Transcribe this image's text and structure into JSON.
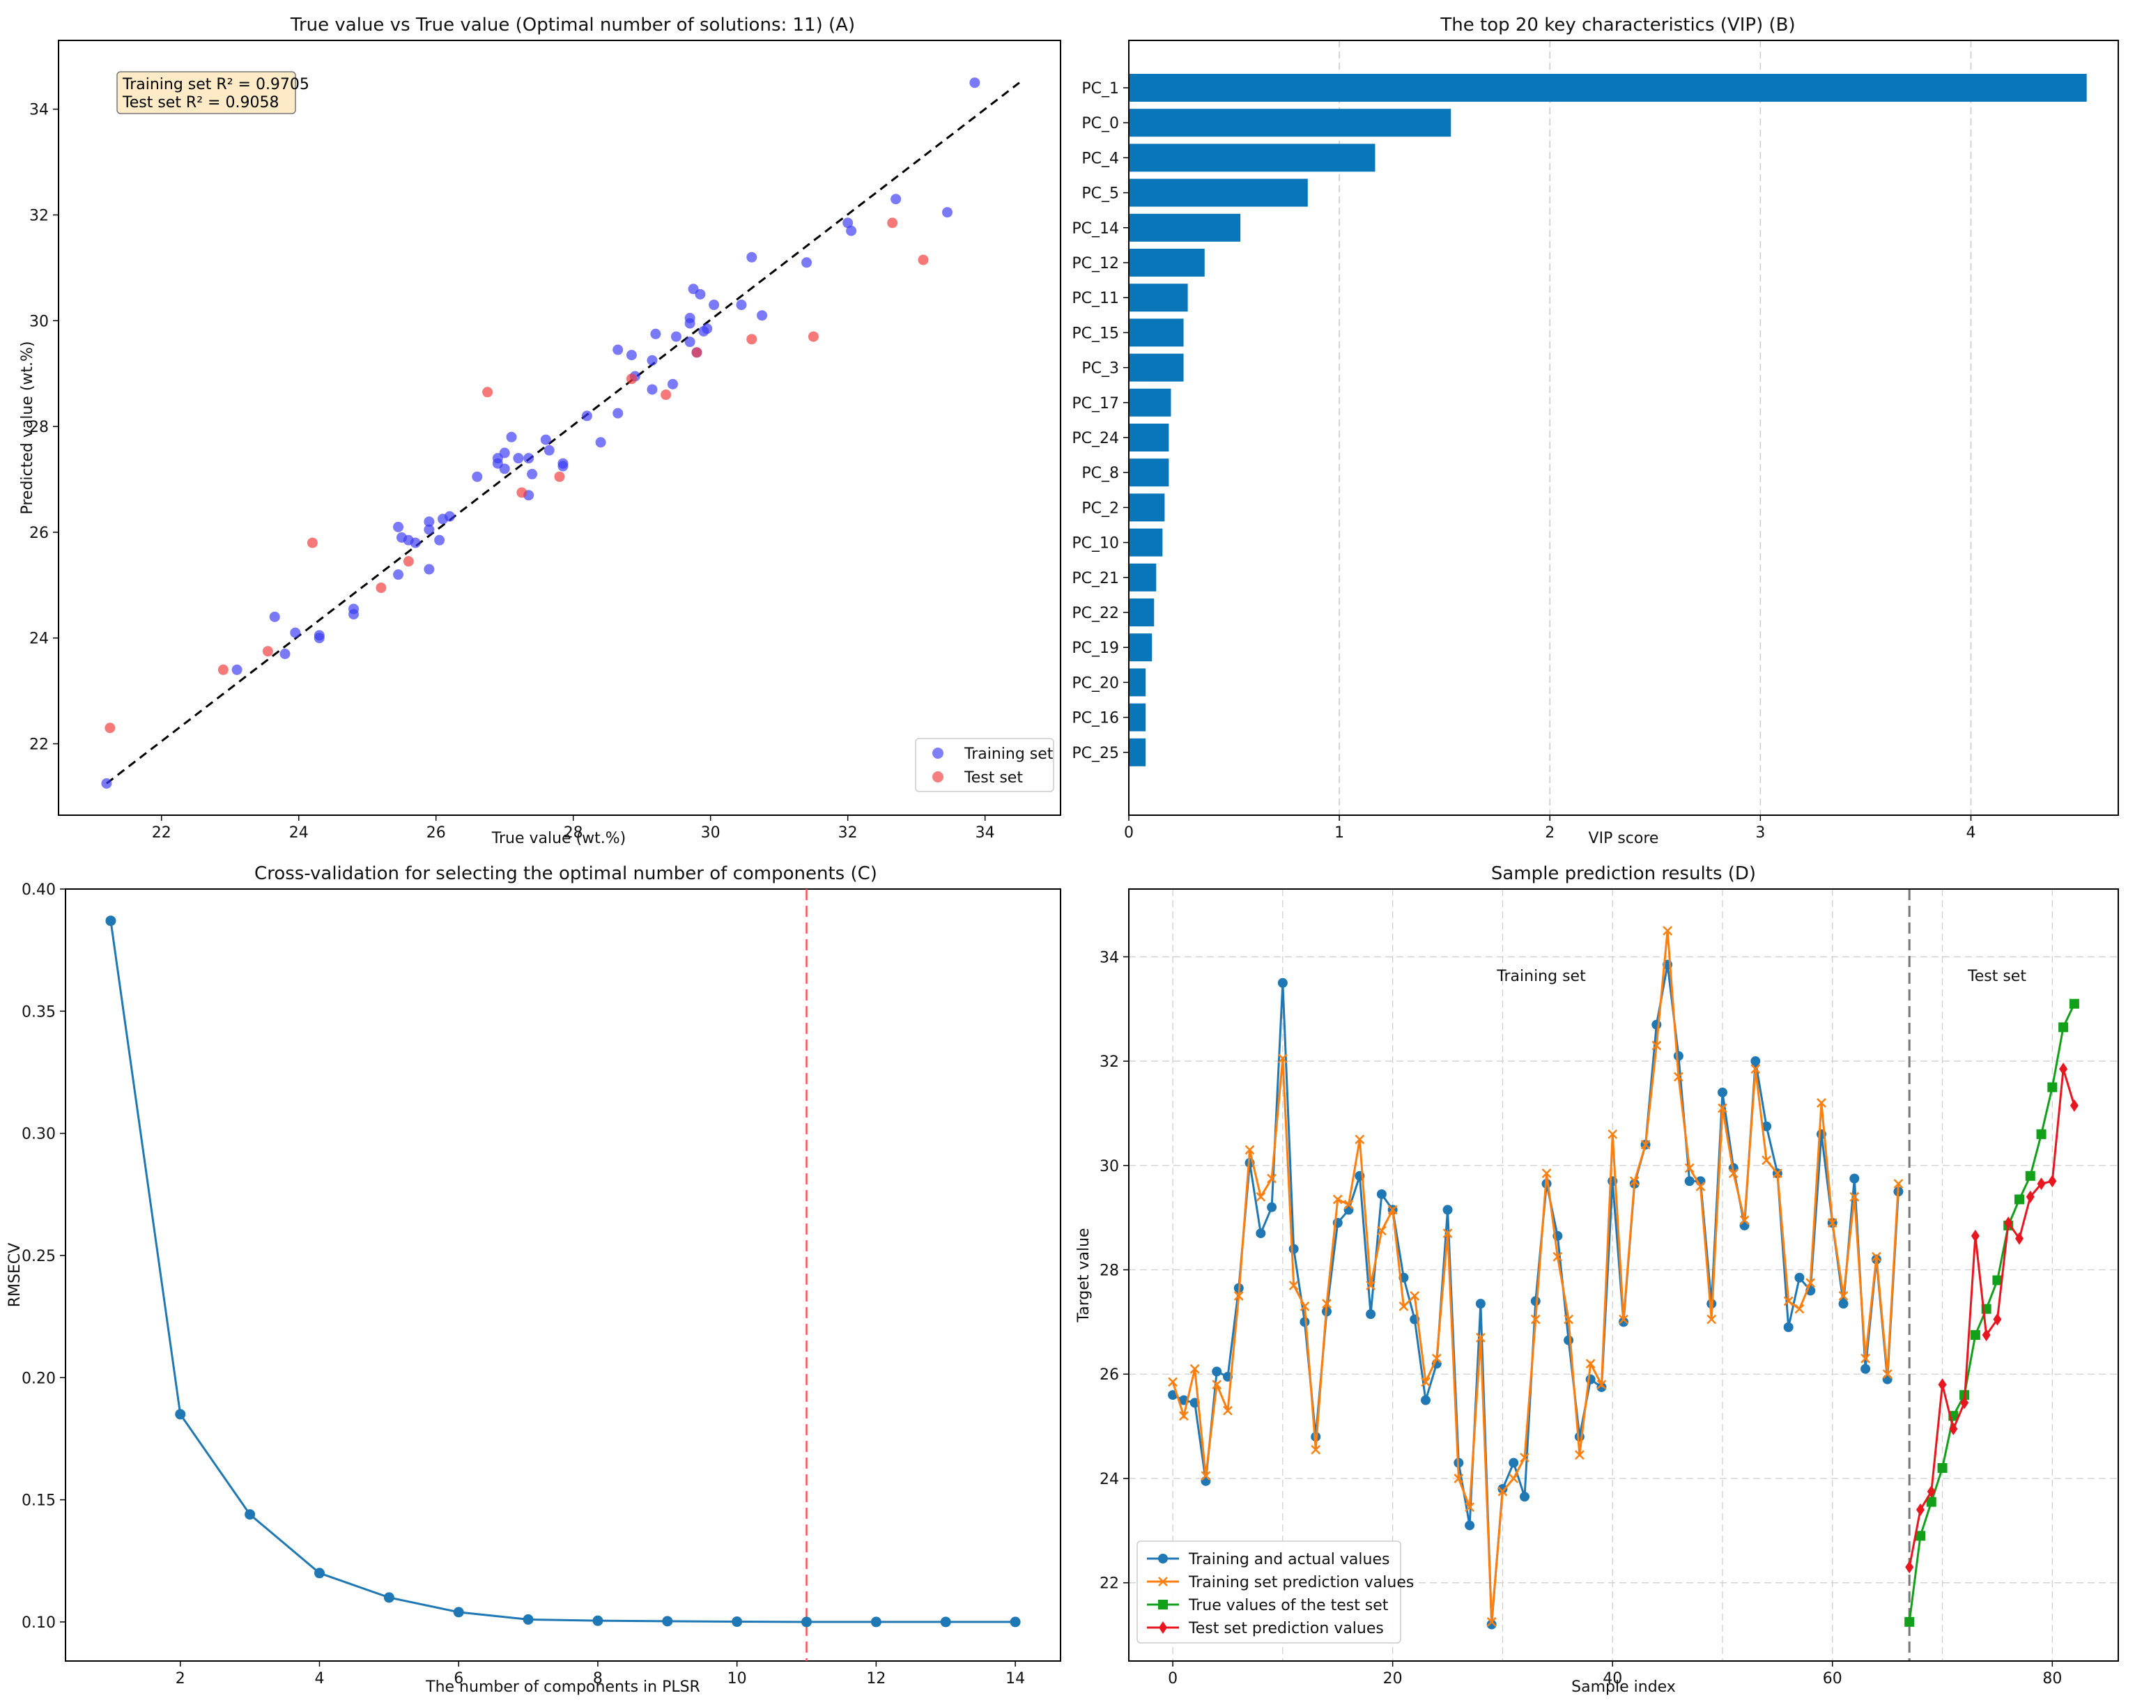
{
  "colors": {
    "train_scatter": "#3b3bf5",
    "test_scatter": "#f03a3a",
    "bar": "#0876b8",
    "blue_line": "#1f77b4",
    "orange_line": "#ff7f0e",
    "green_line": "#12a01a",
    "red_line": "#e8161f",
    "optimal_line": "#ff5555",
    "box_face": "#fdebc8"
  },
  "chart_data": [
    {
      "id": "A",
      "type": "scatter",
      "title": "True value vs True value (Optimal number of solutions: 11) (A)",
      "xlabel": "True value (wt.%)",
      "ylabel": "Predicted value (wt.%)",
      "xlim": [
        20.5,
        35.1
      ],
      "ylim": [
        20.65,
        35.3
      ],
      "xticks": [
        22,
        24,
        26,
        28,
        30,
        32,
        34
      ],
      "yticks": [
        22,
        24,
        26,
        28,
        30,
        32,
        34
      ],
      "grid": false,
      "legend_position": "bottom-right",
      "stats_box": [
        "Training set R² = 0.9705",
        "Test set R² = 0.9058"
      ],
      "reference_line": [
        [
          21.2,
          21.25
        ],
        [
          34.5,
          34.5
        ]
      ],
      "series": [
        {
          "name": "Training set",
          "points": [
            [
              21.2,
              21.25
            ],
            [
              23.1,
              23.4
            ],
            [
              23.65,
              24.4
            ],
            [
              23.8,
              23.7
            ],
            [
              23.95,
              24.1
            ],
            [
              24.3,
              24.05
            ],
            [
              24.3,
              24.0
            ],
            [
              24.8,
              24.45
            ],
            [
              24.8,
              24.55
            ],
            [
              25.45,
              26.1
            ],
            [
              25.5,
              25.9
            ],
            [
              25.45,
              25.2
            ],
            [
              25.6,
              25.85
            ],
            [
              25.7,
              25.8
            ],
            [
              25.9,
              25.3
            ],
            [
              25.9,
              26.05
            ],
            [
              25.9,
              26.2
            ],
            [
              26.05,
              25.85
            ],
            [
              26.1,
              26.25
            ],
            [
              26.2,
              26.3
            ],
            [
              26.6,
              27.05
            ],
            [
              26.9,
              27.4
            ],
            [
              26.9,
              27.3
            ],
            [
              27.0,
              27.2
            ],
            [
              27.0,
              27.5
            ],
            [
              27.1,
              27.8
            ],
            [
              27.2,
              27.4
            ],
            [
              27.35,
              27.4
            ],
            [
              27.35,
              26.7
            ],
            [
              27.4,
              27.1
            ],
            [
              27.6,
              27.75
            ],
            [
              27.65,
              27.55
            ],
            [
              27.85,
              27.3
            ],
            [
              27.85,
              27.25
            ],
            [
              28.2,
              28.2
            ],
            [
              28.4,
              27.7
            ],
            [
              28.65,
              28.25
            ],
            [
              28.65,
              29.45
            ],
            [
              28.85,
              29.35
            ],
            [
              28.9,
              28.95
            ],
            [
              29.15,
              29.25
            ],
            [
              29.15,
              28.7
            ],
            [
              29.2,
              29.75
            ],
            [
              29.45,
              28.8
            ],
            [
              29.5,
              29.7
            ],
            [
              29.7,
              29.95
            ],
            [
              29.7,
              29.6
            ],
            [
              29.7,
              30.05
            ],
            [
              29.75,
              30.6
            ],
            [
              29.85,
              30.5
            ],
            [
              29.9,
              29.8
            ],
            [
              29.95,
              29.85
            ],
            [
              30.05,
              30.3
            ],
            [
              30.45,
              30.3
            ],
            [
              30.6,
              31.2
            ],
            [
              30.75,
              30.1
            ],
            [
              31.4,
              31.1
            ],
            [
              32.0,
              31.85
            ],
            [
              32.05,
              31.7
            ],
            [
              32.7,
              32.3
            ],
            [
              33.45,
              32.05
            ],
            [
              33.85,
              34.5
            ],
            [
              29.8,
              29.4
            ]
          ]
        },
        {
          "name": "Test set",
          "points": [
            [
              21.25,
              22.3
            ],
            [
              22.9,
              23.4
            ],
            [
              23.55,
              23.75
            ],
            [
              24.2,
              25.8
            ],
            [
              25.2,
              24.95
            ],
            [
              25.6,
              25.45
            ],
            [
              26.75,
              28.65
            ],
            [
              27.25,
              26.75
            ],
            [
              27.8,
              27.05
            ],
            [
              28.85,
              28.9
            ],
            [
              29.35,
              28.6
            ],
            [
              29.8,
              29.4
            ],
            [
              30.6,
              29.65
            ],
            [
              31.5,
              29.7
            ],
            [
              32.65,
              31.85
            ],
            [
              33.1,
              31.15
            ]
          ]
        }
      ]
    },
    {
      "id": "B",
      "type": "bar",
      "orientation": "horizontal",
      "title": "The top 20 key characteristics (VIP) (B)",
      "xlabel": "VIP score",
      "ylabel": "",
      "xlim": [
        0,
        4.7
      ],
      "xticks": [
        0,
        1,
        2,
        3,
        4
      ],
      "grid": "x-dashed",
      "categories": [
        "PC_1",
        "PC_0",
        "PC_4",
        "PC_5",
        "PC_14",
        "PC_12",
        "PC_11",
        "PC_15",
        "PC_3",
        "PC_17",
        "PC_24",
        "PC_8",
        "PC_2",
        "PC_10",
        "PC_21",
        "PC_22",
        "PC_19",
        "PC_20",
        "PC_16",
        "PC_25"
      ],
      "values": [
        4.55,
        1.53,
        1.17,
        0.85,
        0.53,
        0.36,
        0.28,
        0.26,
        0.26,
        0.2,
        0.19,
        0.19,
        0.17,
        0.16,
        0.13,
        0.12,
        0.11,
        0.08,
        0.08,
        0.08
      ]
    },
    {
      "id": "C",
      "type": "line",
      "title": "Cross-validation for selecting the optimal number of components (C)",
      "xlabel": "The number of components in PLSR",
      "ylabel": "RMSECV",
      "xlim": [
        0.35,
        14.65
      ],
      "ylim": [
        0.084,
        0.4
      ],
      "xticks": [
        2,
        4,
        6,
        8,
        10,
        12,
        14
      ],
      "yticks": [
        0.1,
        0.15,
        0.2,
        0.25,
        0.3,
        0.35,
        0.4
      ],
      "ytick_labels": [
        "0.10",
        "0.15",
        "0.20",
        "0.25",
        "0.30",
        "0.35",
        "0.40"
      ],
      "grid": false,
      "x": [
        1,
        2,
        3,
        4,
        5,
        6,
        7,
        8,
        9,
        10,
        11,
        12,
        13,
        14
      ],
      "values": [
        0.387,
        0.185,
        0.144,
        0.12,
        0.11,
        0.104,
        0.101,
        0.1005,
        0.1003,
        0.1001,
        0.1,
        0.1,
        0.1,
        0.1
      ],
      "optimal_x": 11
    },
    {
      "id": "D",
      "type": "line",
      "title": "Sample prediction results (D)",
      "xlabel": "Sample index",
      "ylabel": "Target value",
      "xlim": [
        -4,
        86
      ],
      "ylim": [
        20.5,
        35.3
      ],
      "xticks": [
        0,
        20,
        40,
        60,
        80
      ],
      "yticks": [
        22,
        24,
        26,
        28,
        30,
        32,
        34
      ],
      "grid": "dashed",
      "legend_position": "bottom-left",
      "split_x": 67,
      "region_labels": [
        "Training set",
        "Test set"
      ],
      "series": [
        {
          "name": "Training and actual values",
          "x_start": 0,
          "values": [
            25.6,
            25.5,
            25.45,
            23.95,
            26.05,
            25.95,
            27.65,
            30.05,
            28.7,
            29.2,
            33.5,
            28.4,
            27.0,
            24.8,
            27.2,
            28.9,
            29.15,
            29.8,
            27.15,
            29.45,
            29.15,
            27.85,
            27.05,
            25.5,
            26.2,
            29.15,
            24.3,
            23.1,
            27.35,
            21.2,
            23.8,
            24.3,
            23.65,
            27.4,
            29.65,
            28.65,
            26.65,
            24.8,
            25.9,
            25.75,
            29.7,
            27.0,
            29.65,
            30.4,
            32.7,
            33.85,
            32.1,
            29.7,
            29.7,
            27.35,
            31.4,
            29.95,
            28.85,
            32.0,
            30.75,
            29.85,
            26.9,
            27.85,
            27.6,
            30.6,
            28.9,
            27.35,
            29.75,
            26.1,
            28.2,
            25.9,
            29.5
          ]
        },
        {
          "name": "Training set prediction values",
          "x_start": 0,
          "values": [
            25.85,
            25.2,
            26.1,
            24.05,
            25.8,
            25.3,
            27.5,
            30.3,
            29.4,
            29.75,
            32.05,
            27.7,
            27.3,
            24.55,
            27.35,
            29.35,
            29.25,
            30.5,
            27.7,
            28.75,
            29.15,
            27.3,
            27.5,
            25.85,
            26.3,
            28.7,
            24.0,
            23.45,
            26.7,
            21.25,
            23.75,
            24.0,
            24.4,
            27.05,
            29.85,
            28.25,
            27.05,
            24.45,
            26.2,
            25.8,
            30.6,
            27.05,
            29.7,
            30.4,
            32.3,
            34.5,
            31.7,
            29.95,
            29.6,
            27.05,
            31.1,
            29.85,
            28.95,
            31.85,
            30.1,
            29.85,
            27.4,
            27.25,
            27.75,
            31.2,
            28.9,
            27.5,
            29.4,
            26.3,
            28.25,
            26.0,
            29.65
          ]
        },
        {
          "name": "True values of the test set",
          "x_start": 67,
          "values": [
            21.25,
            22.9,
            23.55,
            24.2,
            25.2,
            25.6,
            26.75,
            27.25,
            27.8,
            28.85,
            29.35,
            29.8,
            30.6,
            31.5,
            32.65,
            33.1
          ]
        },
        {
          "name": "Test set prediction values",
          "x_start": 67,
          "values": [
            22.3,
            23.4,
            23.75,
            25.8,
            24.95,
            25.45,
            28.65,
            26.75,
            27.05,
            28.9,
            28.6,
            29.4,
            29.65,
            29.7,
            31.85,
            31.15
          ]
        }
      ]
    }
  ]
}
